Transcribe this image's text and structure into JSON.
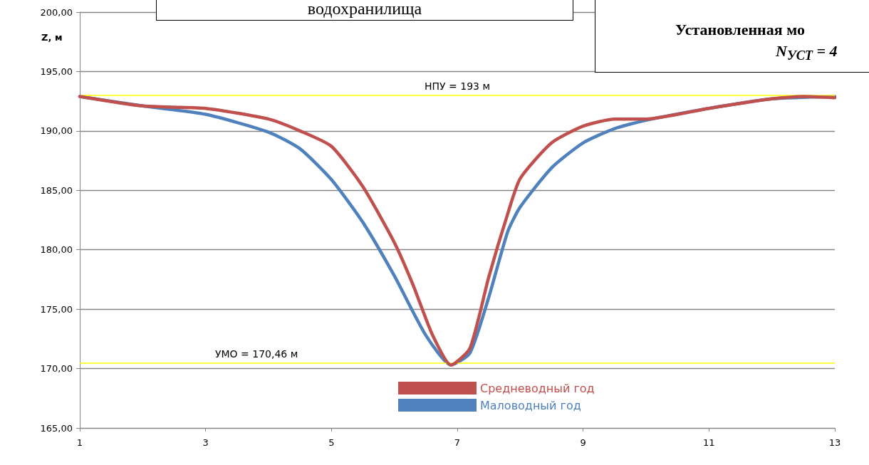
{
  "chart_data": {
    "type": "line",
    "ylabel": "Z, м",
    "annotations": [
      "водохранилища",
      "Установленная мо",
      "N$_{УСТ}$ = 4"
    ],
    "xlim": [
      1,
      13
    ],
    "xticks": [
      1,
      3,
      5,
      7,
      9,
      11,
      13
    ],
    "ylim": [
      165,
      200
    ],
    "yticks": [
      {
        "value": 165,
        "label": "165,00"
      },
      {
        "value": 170,
        "label": "170,00"
      },
      {
        "value": 175,
        "label": "175,00"
      },
      {
        "value": 180,
        "label": "180,00"
      },
      {
        "value": 185,
        "label": "185,00"
      },
      {
        "value": 190,
        "label": "190,00"
      },
      {
        "value": 195,
        "label": "195,00"
      },
      {
        "value": 200,
        "label": "200,00"
      }
    ],
    "grid": "y",
    "legend": "bottom",
    "marker": "none",
    "line_style": "solid",
    "ref_lines": [
      {
        "axis": "y",
        "value": 193,
        "label": "НПУ = 193 м",
        "color": "#ffff00"
      },
      {
        "axis": "y",
        "value": 170.46,
        "label": "УМО = 170,46 м",
        "color": "#ffff00"
      }
    ],
    "series": [
      {
        "name": "Средневодный год",
        "color": "#c0504d",
        "x": [
          1,
          2,
          3,
          4,
          4.5,
          5,
          5.5,
          6,
          6.3,
          6.6,
          6.9,
          7.2,
          7.5,
          7.8,
          8,
          8.5,
          9,
          9.5,
          10,
          11,
          12,
          12.5,
          13
        ],
        "values": [
          192.9,
          192.1,
          191.9,
          191.0,
          190.0,
          188.7,
          185.3,
          180.6,
          177.0,
          172.9,
          170.3,
          171.7,
          177.7,
          183.0,
          186.0,
          189.0,
          190.4,
          191.0,
          191.0,
          191.9,
          192.7,
          192.9,
          192.8
        ]
      },
      {
        "name": "Маловодный год",
        "color": "#4f81bd",
        "x": [
          1,
          2,
          3,
          4,
          4.5,
          5,
          5.5,
          6,
          6.5,
          6.9,
          7.2,
          7.5,
          7.8,
          8,
          8.5,
          9,
          9.5,
          10,
          11,
          12,
          13
        ],
        "values": [
          192.9,
          192.1,
          191.4,
          189.9,
          188.5,
          185.9,
          182.3,
          177.8,
          172.8,
          170.3,
          171.3,
          176.0,
          181.5,
          183.6,
          186.9,
          189.0,
          190.2,
          190.9,
          191.9,
          192.7,
          192.9
        ]
      }
    ]
  }
}
